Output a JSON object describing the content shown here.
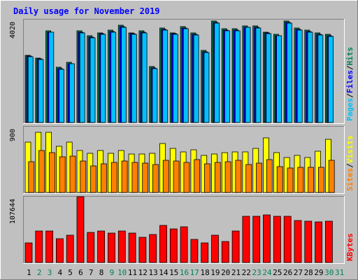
{
  "chart_data": {
    "type": "bar",
    "title": "Daily usage for November 2019",
    "categories": [
      "1",
      "2",
      "3",
      "4",
      "5",
      "6",
      "7",
      "8",
      "9",
      "10",
      "11",
      "12",
      "13",
      "14",
      "15",
      "16",
      "17",
      "18",
      "19",
      "20",
      "21",
      "22",
      "23",
      "24",
      "25",
      "26",
      "27",
      "28",
      "29",
      "30",
      "31"
    ],
    "weekend_days": [
      "2",
      "3",
      "9",
      "10",
      "16",
      "17",
      "23",
      "24",
      "30",
      "31"
    ],
    "panels": [
      {
        "name": "hits-files-pages",
        "ymax_label": "4020",
        "ymax": 4020,
        "legend": [
          "Pages",
          "/",
          "Files",
          "/",
          "Hits"
        ],
        "series": [
          {
            "name": "Hits",
            "color": "#00805c",
            "values": [
              2670,
              2560,
              3640,
              2190,
              2390,
              3620,
              3440,
              3560,
              3660,
              3840,
              3560,
              3620,
              2210,
              3740,
              3560,
              3800,
              3540,
              2850,
              4010,
              3710,
              3720,
              3830,
              3820,
              3590,
              3500,
              4020,
              3740,
              3660,
              3540,
              3490,
              0
            ]
          },
          {
            "name": "Files",
            "color": "#0000ff",
            "values": [
              2620,
              2510,
              3590,
              2140,
              2340,
              3570,
              3390,
              3510,
              3610,
              3790,
              3510,
              3570,
              2160,
              3690,
              3510,
              3750,
              3490,
              2800,
              3960,
              3660,
              3670,
              3780,
              3770,
              3540,
              3450,
              3970,
              3690,
              3610,
              3490,
              3440,
              0
            ]
          },
          {
            "name": "Pages",
            "color": "#00c0ff",
            "values": [
              2600,
              2490,
              3580,
              2120,
              2320,
              3540,
              3360,
              3490,
              3580,
              3760,
              3480,
              3540,
              2140,
              3670,
              3480,
              3720,
              3460,
              2780,
              3930,
              3640,
              3640,
              3760,
              3750,
              3520,
              3430,
              3950,
              3670,
              3590,
              3460,
              3420,
              0
            ]
          }
        ]
      },
      {
        "name": "visits-sites",
        "ymax_label": "900",
        "ymax": 900,
        "legend": [
          "Sites",
          "/",
          "Visits"
        ],
        "series": [
          {
            "name": "Visits",
            "color": "#ffff00",
            "values": [
              700,
              840,
              840,
              650,
              700,
              590,
              550,
              590,
              550,
              590,
              540,
              540,
              550,
              680,
              620,
              570,
              600,
              520,
              540,
              560,
              570,
              570,
              620,
              760,
              560,
              490,
              520,
              490,
              580,
              740,
              0
            ]
          },
          {
            "name": "Sites",
            "color": "#ff8000",
            "values": [
              430,
              590,
              560,
              500,
              510,
              440,
              370,
              400,
              420,
              440,
              420,
              410,
              390,
              450,
              440,
              420,
              460,
              400,
              420,
              430,
              450,
              390,
              410,
              460,
              360,
              340,
              350,
              350,
              350,
              450,
              0
            ]
          }
        ]
      },
      {
        "name": "kbytes",
        "ymax_label": "107644",
        "ymax": 107644,
        "legend": [
          "KBytes"
        ],
        "series": [
          {
            "name": "KBytes",
            "color": "#ff0000",
            "values": [
              33000,
              53000,
              53000,
              40000,
              46000,
              110000,
              50000,
              53000,
              49000,
              53000,
              49000,
              42000,
              47000,
              62000,
              56000,
              60000,
              39000,
              33000,
              46000,
              35000,
              53000,
              77000,
              77000,
              79000,
              77000,
              77000,
              70000,
              69000,
              68000,
              69000,
              0
            ]
          }
        ]
      }
    ]
  },
  "colors": {
    "background": "#c0c0c0",
    "title": "#0000ff",
    "weekday_label": "#000000",
    "weekend_label": "#00805c",
    "panel_background": "#ffffff",
    "frame_dark": "#808080",
    "frame_light": "#ffffff"
  }
}
